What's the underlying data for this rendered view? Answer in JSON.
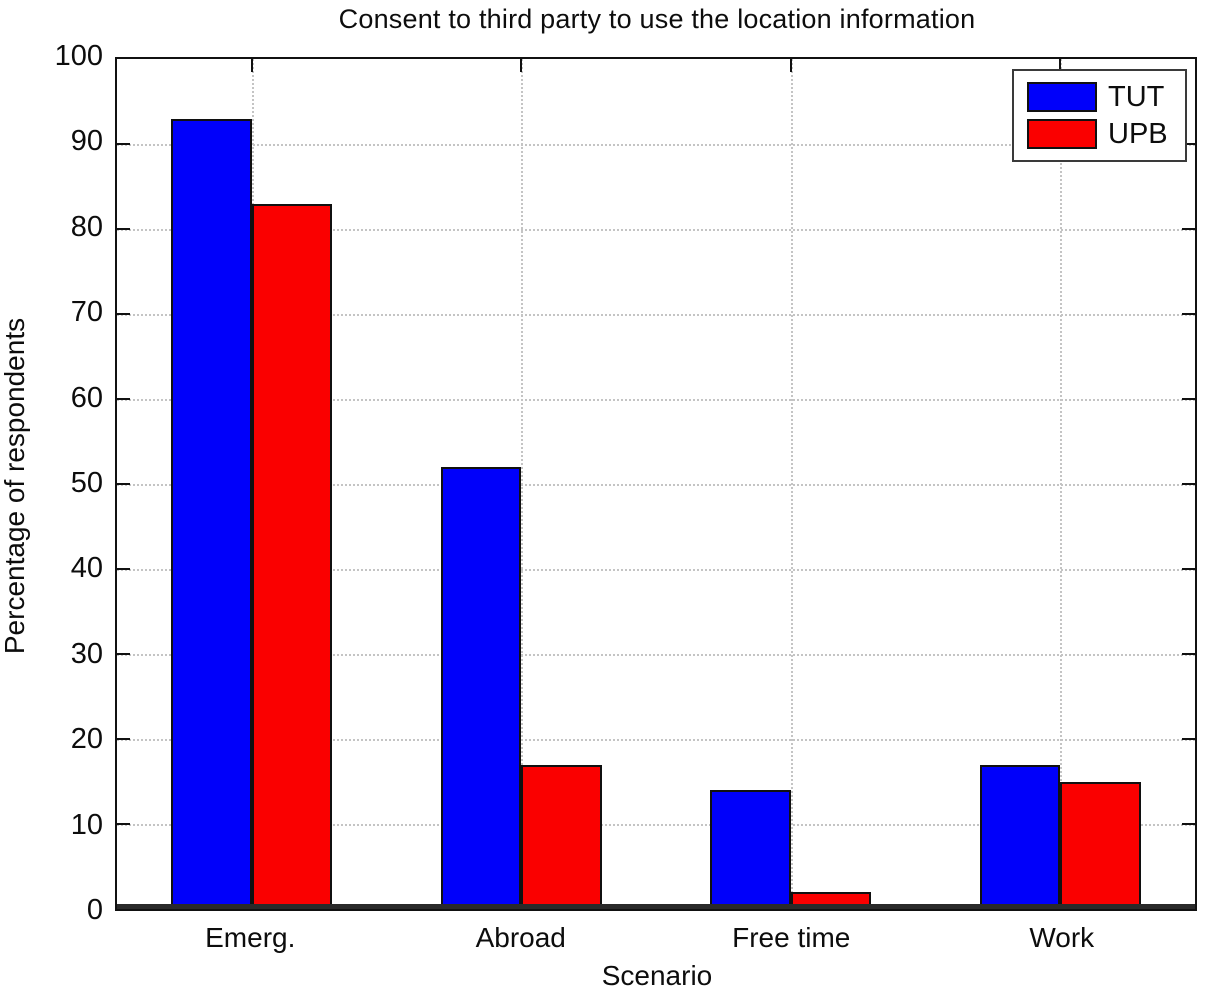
{
  "chart_data": {
    "type": "bar",
    "title": "Consent to third party to use the location information",
    "xlabel": "Scenario",
    "ylabel": "Percentage of respondents",
    "categories": [
      "Emerg.",
      "Abroad",
      "Free time",
      "Work"
    ],
    "series": [
      {
        "name": "TUT",
        "color": "#0000fa",
        "values": [
          93,
          52,
          14,
          17
        ]
      },
      {
        "name": "UPB",
        "color": "#fa0000",
        "values": [
          83,
          17,
          2,
          15
        ]
      }
    ],
    "ylim": [
      0,
      100
    ],
    "ytick_step": 10,
    "yticks": [
      0,
      10,
      20,
      30,
      40,
      50,
      60,
      70,
      80,
      90,
      100
    ],
    "grid": true,
    "legend_position": "top-right"
  },
  "colors": {
    "tut_bar": "#0000fa",
    "upb_bar": "#fa0000",
    "gridline": "#c4c4c4",
    "axis": "#111111",
    "background": "#ffffff"
  }
}
